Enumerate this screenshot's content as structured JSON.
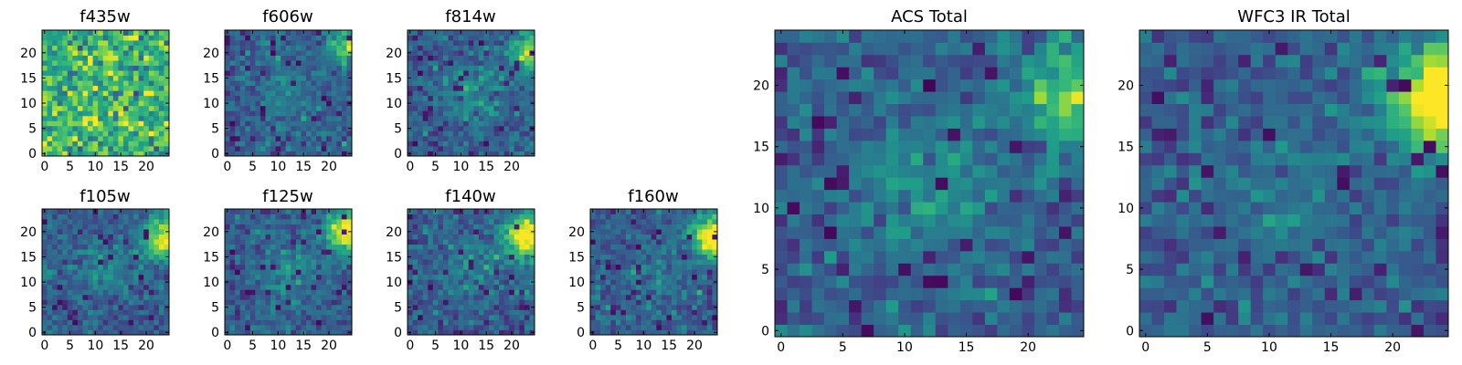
{
  "chart_data": [
    {
      "type": "heatmap",
      "title": "f435w",
      "xlabel": "",
      "ylabel": "",
      "xlim": [
        0,
        25
      ],
      "ylim": [
        0,
        25
      ],
      "grid": false,
      "x_ticks": [
        "0",
        "5",
        "10",
        "15",
        "20"
      ],
      "y_ticks": [
        "0",
        "5",
        "10",
        "15",
        "20"
      ],
      "colormap": "viridis",
      "pattern": "noise",
      "description_values": {
        "mean": 0.66,
        "spread": 0.32
      }
    },
    {
      "type": "heatmap",
      "title": "f606w",
      "xlabel": "",
      "ylabel": "",
      "xlim": [
        0,
        25
      ],
      "ylim": [
        0,
        25
      ],
      "grid": false,
      "x_ticks": [
        "0",
        "5",
        "10",
        "15",
        "20"
      ],
      "y_ticks": [
        "0",
        "5",
        "10",
        "15",
        "20"
      ],
      "colormap": "viridis",
      "pattern": "corner-blob",
      "description_values": {
        "blob_x": 24,
        "blob_y": 22,
        "blob_strength": 0.45,
        "center_strength": 0.15
      }
    },
    {
      "type": "heatmap",
      "title": "f814w",
      "xlabel": "",
      "ylabel": "",
      "xlim": [
        0,
        25
      ],
      "ylim": [
        0,
        25
      ],
      "grid": false,
      "x_ticks": [
        "0",
        "5",
        "10",
        "15",
        "20"
      ],
      "y_ticks": [
        "0",
        "5",
        "10",
        "15",
        "20"
      ],
      "colormap": "viridis",
      "pattern": "corner-blob",
      "description_values": {
        "blob_x": 24,
        "blob_y": 20,
        "blob_strength": 0.55,
        "center_strength": 0.22
      }
    },
    {
      "type": "heatmap",
      "title": "f105w",
      "xlabel": "",
      "ylabel": "",
      "xlim": [
        0,
        25
      ],
      "ylim": [
        0,
        25
      ],
      "grid": false,
      "x_ticks": [
        "0",
        "5",
        "10",
        "15",
        "20"
      ],
      "y_ticks": [
        "0",
        "5",
        "10",
        "15",
        "20"
      ],
      "colormap": "viridis",
      "pattern": "corner-blob",
      "description_values": {
        "blob_x": 24,
        "blob_y": 19,
        "blob_strength": 0.7,
        "center_strength": 0.15
      }
    },
    {
      "type": "heatmap",
      "title": "f125w",
      "xlabel": "",
      "ylabel": "",
      "xlim": [
        0,
        25
      ],
      "ylim": [
        0,
        25
      ],
      "grid": false,
      "x_ticks": [
        "0",
        "5",
        "10",
        "15",
        "20"
      ],
      "y_ticks": [
        "0",
        "5",
        "10",
        "15",
        "20"
      ],
      "colormap": "viridis",
      "pattern": "corner-blob",
      "description_values": {
        "blob_x": 24,
        "blob_y": 20,
        "blob_strength": 0.75,
        "center_strength": 0.18
      }
    },
    {
      "type": "heatmap",
      "title": "f140w",
      "xlabel": "",
      "ylabel": "",
      "xlim": [
        0,
        25
      ],
      "ylim": [
        0,
        25
      ],
      "grid": false,
      "x_ticks": [
        "0",
        "5",
        "10",
        "15",
        "20"
      ],
      "y_ticks": [
        "0",
        "5",
        "10",
        "15",
        "20"
      ],
      "colormap": "viridis",
      "pattern": "corner-blob",
      "description_values": {
        "blob_x": 23,
        "blob_y": 19,
        "blob_strength": 0.8,
        "center_strength": 0.15
      }
    },
    {
      "type": "heatmap",
      "title": "f160w",
      "xlabel": "",
      "ylabel": "",
      "xlim": [
        0,
        25
      ],
      "ylim": [
        0,
        25
      ],
      "grid": false,
      "x_ticks": [
        "0",
        "5",
        "10",
        "15",
        "20"
      ],
      "y_ticks": [
        "0",
        "5",
        "10",
        "15",
        "20"
      ],
      "colormap": "viridis",
      "pattern": "corner-blob",
      "description_values": {
        "blob_x": 24,
        "blob_y": 19,
        "blob_strength": 0.85,
        "center_strength": 0.12
      }
    },
    {
      "type": "heatmap",
      "title": "ACS Total",
      "xlabel": "",
      "ylabel": "",
      "xlim": [
        0,
        25
      ],
      "ylim": [
        0,
        25
      ],
      "grid": false,
      "x_ticks": [
        "0",
        "5",
        "10",
        "15",
        "20"
      ],
      "y_ticks": [
        "0",
        "5",
        "10",
        "15",
        "20"
      ],
      "colormap": "viridis",
      "pattern": "corner-blob",
      "description_values": {
        "blob_x": 24,
        "blob_y": 19,
        "blob_strength": 0.5,
        "center_strength": 0.22
      }
    },
    {
      "type": "heatmap",
      "title": "WFC3 IR Total",
      "xlabel": "",
      "ylabel": "",
      "xlim": [
        0,
        25
      ],
      "ylim": [
        0,
        25
      ],
      "grid": false,
      "x_ticks": [
        "0",
        "5",
        "10",
        "15",
        "20"
      ],
      "y_ticks": [
        "0",
        "5",
        "10",
        "15",
        "20"
      ],
      "colormap": "viridis",
      "pattern": "corner-blob",
      "description_values": {
        "blob_x": 24,
        "blob_y": 19,
        "blob_strength": 0.85,
        "center_strength": 0.12
      }
    }
  ]
}
